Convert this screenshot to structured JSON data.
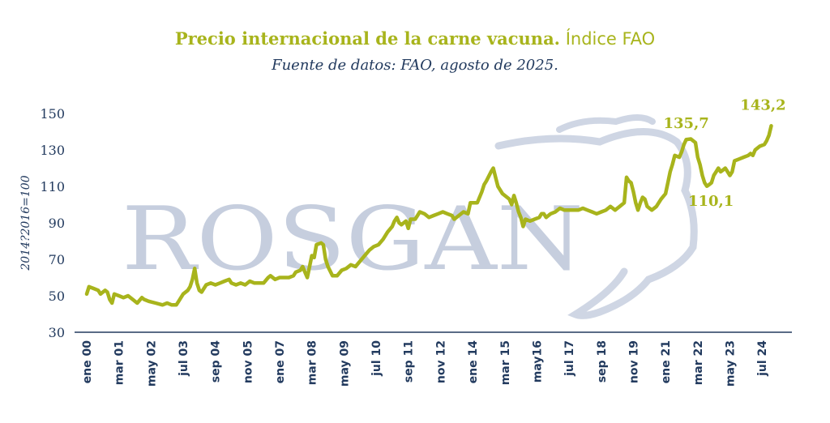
{
  "title": {
    "bold": "Precio internacional de la carne vacuna.",
    "light": "Índice FAO"
  },
  "subtitle": "Fuente de datos: FAO, agosto de 2025.",
  "watermark": "ROSGAN",
  "colors": {
    "line": "#a8b41c",
    "axis_text": "#223a5e",
    "axis_line": "#223a5e",
    "watermark": "#c6cede"
  },
  "chart_data": {
    "type": "line",
    "title": "Precio internacional de la carne vacuna. Índice FAO",
    "subtitle": "Fuente de datos: FAO, agosto de 2025.",
    "ylabel": "2014?2016=100",
    "ylim": [
      30,
      150
    ],
    "yticks": [
      30,
      50,
      70,
      90,
      110,
      130,
      150
    ],
    "xlim": [
      0,
      307
    ],
    "xticks": [
      {
        "label": "ene 00",
        "x": 0
      },
      {
        "label": "mar 01",
        "x": 14
      },
      {
        "label": "may 02",
        "x": 28
      },
      {
        "label": "jul 03",
        "x": 42
      },
      {
        "label": "sep 04",
        "x": 56
      },
      {
        "label": "nov 05",
        "x": 70
      },
      {
        "label": "ene 07",
        "x": 84
      },
      {
        "label": "mar 08",
        "x": 98
      },
      {
        "label": "may 09",
        "x": 112
      },
      {
        "label": "jul 10",
        "x": 126
      },
      {
        "label": "sep 11",
        "x": 140
      },
      {
        "label": "nov 12",
        "x": 154
      },
      {
        "label": "ene 14",
        "x": 168
      },
      {
        "label": "mar 15",
        "x": 182
      },
      {
        "label": "may16",
        "x": 196
      },
      {
        "label": "jul 17",
        "x": 210
      },
      {
        "label": "sep 18",
        "x": 224
      },
      {
        "label": "nov 19",
        "x": 238
      },
      {
        "label": "ene 21",
        "x": 252
      },
      {
        "label": "mar 22",
        "x": 266
      },
      {
        "label": "may 23",
        "x": 280
      },
      {
        "label": "jul 24",
        "x": 294
      }
    ],
    "grid": false,
    "series": [
      {
        "points": [
          [
            0,
            51
          ],
          [
            1,
            55
          ],
          [
            3,
            54
          ],
          [
            5,
            53
          ],
          [
            6,
            51
          ],
          [
            8,
            53
          ],
          [
            9,
            52
          ],
          [
            10,
            48
          ],
          [
            11,
            46
          ],
          [
            12,
            51
          ],
          [
            14,
            50
          ],
          [
            16,
            49
          ],
          [
            18,
            50
          ],
          [
            20,
            48
          ],
          [
            22,
            46
          ],
          [
            24,
            49
          ],
          [
            25,
            48
          ],
          [
            27,
            47
          ],
          [
            30,
            46
          ],
          [
            33,
            45
          ],
          [
            35,
            46
          ],
          [
            37,
            45
          ],
          [
            39,
            45
          ],
          [
            40,
            47
          ],
          [
            42,
            51
          ],
          [
            44,
            53
          ],
          [
            45,
            55
          ],
          [
            46,
            59
          ],
          [
            47,
            65
          ],
          [
            48,
            57
          ],
          [
            49,
            53
          ],
          [
            50,
            52
          ],
          [
            52,
            56
          ],
          [
            54,
            57
          ],
          [
            56,
            56
          ],
          [
            58,
            57
          ],
          [
            60,
            58
          ],
          [
            62,
            59
          ],
          [
            63,
            57
          ],
          [
            65,
            56
          ],
          [
            67,
            57
          ],
          [
            69,
            56
          ],
          [
            71,
            58
          ],
          [
            73,
            57
          ],
          [
            75,
            57
          ],
          [
            77,
            57
          ],
          [
            79,
            60
          ],
          [
            80,
            61
          ],
          [
            82,
            59
          ],
          [
            84,
            60
          ],
          [
            86,
            60
          ],
          [
            88,
            60
          ],
          [
            90,
            61
          ],
          [
            91,
            63
          ],
          [
            93,
            64
          ],
          [
            94,
            66
          ],
          [
            95,
            63
          ],
          [
            96,
            60
          ],
          [
            97,
            66
          ],
          [
            98,
            72
          ],
          [
            99,
            71
          ],
          [
            100,
            78
          ],
          [
            102,
            79
          ],
          [
            103,
            78
          ],
          [
            104,
            70
          ],
          [
            105,
            66
          ],
          [
            107,
            61
          ],
          [
            109,
            61
          ],
          [
            111,
            64
          ],
          [
            113,
            65
          ],
          [
            115,
            67
          ],
          [
            117,
            66
          ],
          [
            119,
            69
          ],
          [
            121,
            72
          ],
          [
            123,
            75
          ],
          [
            125,
            77
          ],
          [
            127,
            78
          ],
          [
            129,
            81
          ],
          [
            131,
            85
          ],
          [
            133,
            88
          ],
          [
            134,
            91
          ],
          [
            135,
            93
          ],
          [
            136,
            90
          ],
          [
            137,
            89
          ],
          [
            138,
            90
          ],
          [
            139,
            91
          ],
          [
            140,
            87
          ],
          [
            141,
            92
          ],
          [
            143,
            92
          ],
          [
            144,
            94
          ],
          [
            145,
            96
          ],
          [
            147,
            95
          ],
          [
            149,
            93
          ],
          [
            151,
            94
          ],
          [
            153,
            95
          ],
          [
            155,
            96
          ],
          [
            157,
            95
          ],
          [
            159,
            94
          ],
          [
            160,
            92
          ],
          [
            162,
            94
          ],
          [
            164,
            96
          ],
          [
            166,
            95
          ],
          [
            167,
            101
          ],
          [
            168,
            101
          ],
          [
            170,
            101
          ],
          [
            172,
            107
          ],
          [
            173,
            111
          ],
          [
            174,
            113
          ],
          [
            176,
            118
          ],
          [
            177,
            120
          ],
          [
            178,
            115
          ],
          [
            179,
            110
          ],
          [
            181,
            106
          ],
          [
            183,
            104
          ],
          [
            184,
            103
          ],
          [
            185,
            100
          ],
          [
            186,
            105
          ],
          [
            187,
            101
          ],
          [
            188,
            96
          ],
          [
            189,
            93
          ],
          [
            190,
            88
          ],
          [
            191,
            92
          ],
          [
            193,
            91
          ],
          [
            195,
            92
          ],
          [
            197,
            93
          ],
          [
            198,
            95
          ],
          [
            199,
            95
          ],
          [
            200,
            93
          ],
          [
            202,
            95
          ],
          [
            204,
            96
          ],
          [
            206,
            98
          ],
          [
            208,
            97
          ],
          [
            210,
            97
          ],
          [
            212,
            97
          ],
          [
            214,
            97
          ],
          [
            216,
            98
          ],
          [
            218,
            97
          ],
          [
            220,
            96
          ],
          [
            222,
            95
          ],
          [
            224,
            96
          ],
          [
            226,
            97
          ],
          [
            228,
            99
          ],
          [
            229,
            98
          ],
          [
            230,
            97
          ],
          [
            232,
            99
          ],
          [
            234,
            101
          ],
          [
            235,
            115
          ],
          [
            236,
            113
          ],
          [
            237,
            112
          ],
          [
            238,
            107
          ],
          [
            239,
            101
          ],
          [
            240,
            97
          ],
          [
            241,
            101
          ],
          [
            242,
            104
          ],
          [
            243,
            103
          ],
          [
            244,
            99
          ],
          [
            246,
            97
          ],
          [
            248,
            99
          ],
          [
            250,
            103
          ],
          [
            252,
            106
          ],
          [
            253,
            112
          ],
          [
            254,
            118
          ],
          [
            255,
            122
          ],
          [
            256,
            127
          ],
          [
            258,
            126
          ],
          [
            259,
            129
          ],
          [
            260,
            133
          ],
          [
            261,
            135.7
          ],
          [
            263,
            136
          ],
          [
            265,
            134
          ],
          [
            266,
            126
          ],
          [
            267,
            122
          ],
          [
            268,
            116
          ],
          [
            269,
            112
          ],
          [
            270,
            110.1
          ],
          [
            271,
            111
          ],
          [
            272,
            112
          ],
          [
            273,
            116
          ],
          [
            274,
            118
          ],
          [
            275,
            120
          ],
          [
            276,
            118
          ],
          [
            277,
            119
          ],
          [
            278,
            120
          ],
          [
            279,
            118
          ],
          [
            280,
            116
          ],
          [
            281,
            118
          ],
          [
            282,
            124
          ],
          [
            284,
            125
          ],
          [
            286,
            126
          ],
          [
            288,
            127
          ],
          [
            289,
            128
          ],
          [
            290,
            127
          ],
          [
            291,
            130
          ],
          [
            293,
            132
          ],
          [
            295,
            133
          ],
          [
            296,
            135
          ],
          [
            297,
            138
          ],
          [
            298,
            143.2
          ]
        ]
      }
    ],
    "annotations": [
      {
        "text": "135,7",
        "x": 261,
        "y": 135.7
      },
      {
        "text": "110,1",
        "x": 270,
        "y": 110.1
      },
      {
        "text": "143,2",
        "x": 298,
        "y": 143.2
      }
    ]
  }
}
